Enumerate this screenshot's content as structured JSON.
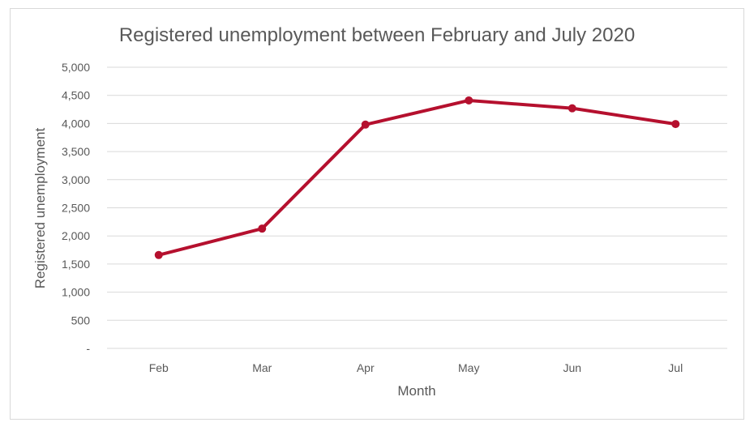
{
  "chart_data": {
    "type": "line",
    "title": "Registered unemployment between February and July 2020",
    "xlabel": "Month",
    "ylabel": "Registered unemployment",
    "categories": [
      "Feb",
      "Mar",
      "Apr",
      "May",
      "Jun",
      "Jul"
    ],
    "series": [
      {
        "values": [
          1660,
          2130,
          3980,
          4410,
          4270,
          3990
        ],
        "color": "#b5102e"
      }
    ],
    "ylim": [
      0,
      5000
    ],
    "yticks": [
      0,
      500,
      1000,
      1500,
      2000,
      2500,
      3000,
      3500,
      4000,
      4500,
      5000
    ],
    "ytick_labels": [
      "-",
      "500",
      "1,000",
      "1,500",
      "2,000",
      "2,500",
      "3,000",
      "3,500",
      "4,000",
      "4,500",
      "5,000"
    ],
    "grid": true,
    "legend": "none",
    "gridline_color": "#d9d9d9"
  }
}
